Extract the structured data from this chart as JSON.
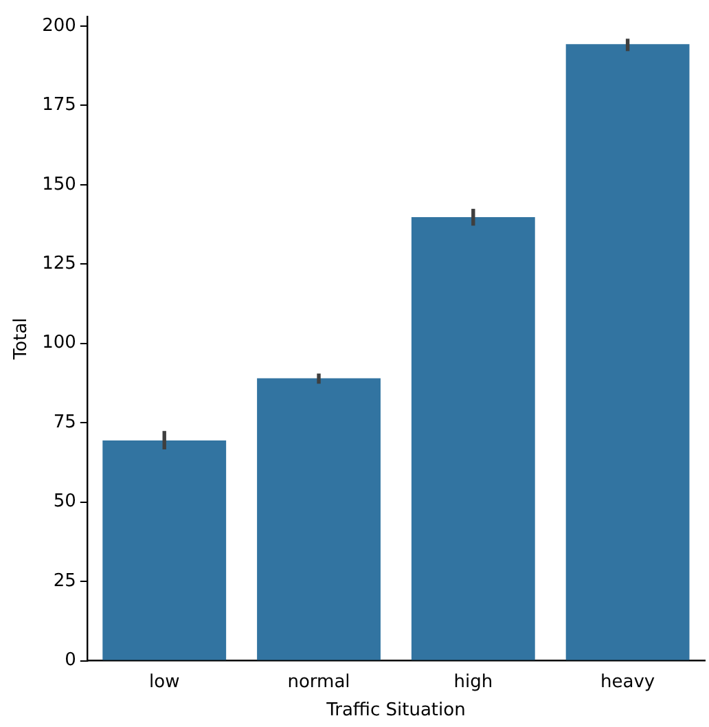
{
  "chart_data": {
    "type": "bar",
    "xlabel": "Traffic Situation",
    "ylabel": "Total",
    "categories": [
      "low",
      "normal",
      "high",
      "heavy"
    ],
    "values": [
      69.4,
      89,
      139.8,
      194.3
    ],
    "errors": [
      [
        66.6,
        72.4
      ],
      [
        87.3,
        90.5
      ],
      [
        137.1,
        142.4
      ],
      [
        192.1,
        196
      ]
    ],
    "color": "#3274a1",
    "ylim": [
      0,
      203
    ],
    "yticks": [
      0,
      25,
      50,
      75,
      100,
      125,
      150,
      175,
      200
    ],
    "grid": false,
    "legend": false
  }
}
